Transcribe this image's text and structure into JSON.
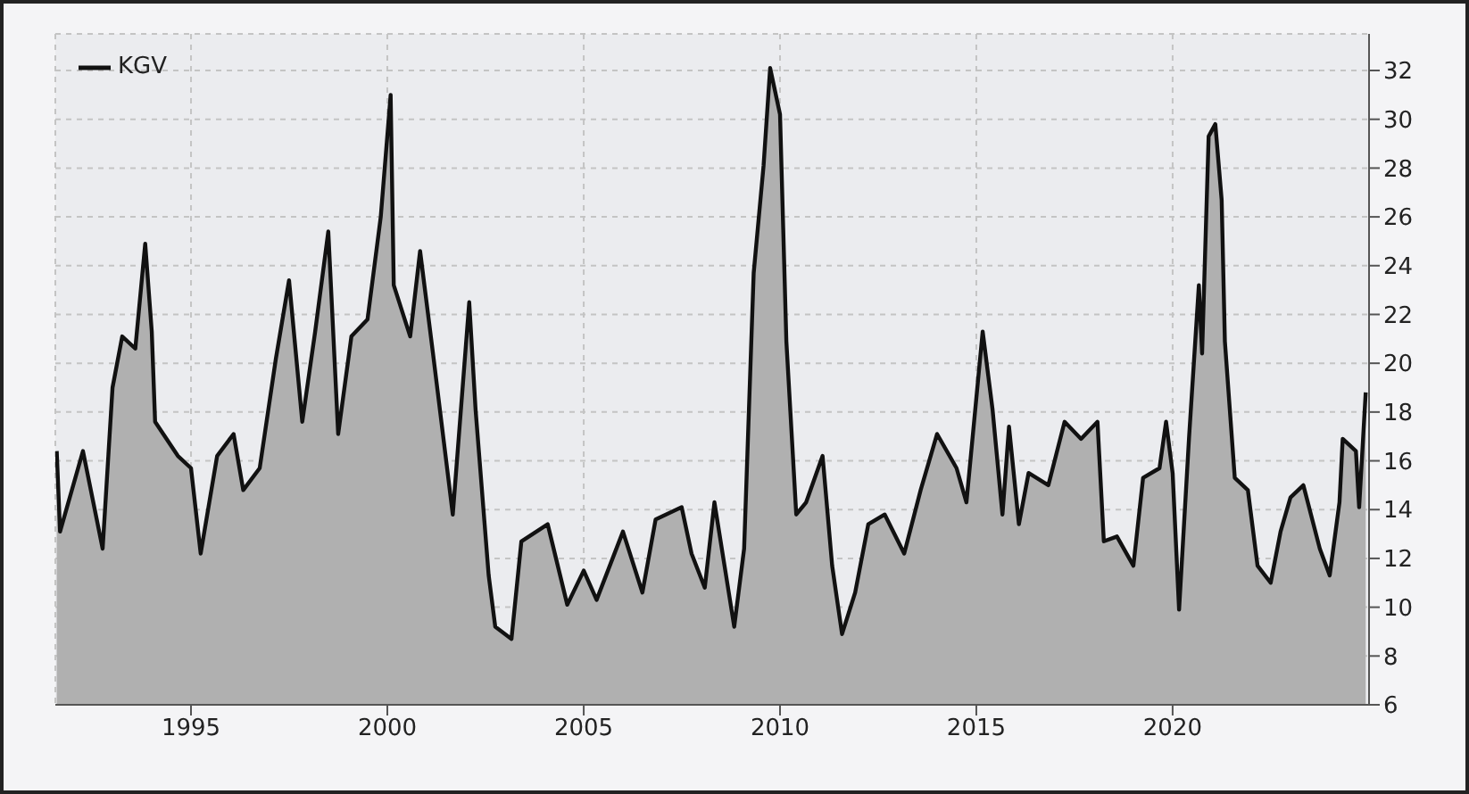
{
  "chart_data": {
    "type": "area",
    "x": [
      "1991-08",
      "1991-09",
      "1992-04",
      "1992-10",
      "1993-01",
      "1993-04",
      "1993-08",
      "1993-11",
      "1994-01",
      "1994-02",
      "1994-09",
      "1995-01",
      "1995-04",
      "1995-09",
      "1996-02",
      "1996-05",
      "1996-10",
      "1997-03",
      "1997-07",
      "1997-11",
      "1998-03",
      "1998-07",
      "1998-10",
      "1999-02",
      "1999-07",
      "1999-11",
      "2000-02",
      "2000-03",
      "2000-08",
      "2000-11",
      "2001-03",
      "2001-09",
      "2002-02",
      "2002-04",
      "2002-08",
      "2002-10",
      "2003-03",
      "2003-06",
      "2004-02",
      "2004-08",
      "2005-01",
      "2005-05",
      "2006-01",
      "2006-07",
      "2006-11",
      "2007-07",
      "2007-10",
      "2008-02",
      "2008-05",
      "2008-11",
      "2009-02",
      "2009-05",
      "2009-08",
      "2009-10",
      "2010-01",
      "2010-03",
      "2010-06",
      "2010-09",
      "2011-02",
      "2011-05",
      "2011-08",
      "2011-12",
      "2012-04",
      "2012-09",
      "2013-03",
      "2013-08",
      "2014-01",
      "2014-07",
      "2014-10",
      "2015-03",
      "2015-06",
      "2015-09",
      "2015-11",
      "2016-02",
      "2016-05",
      "2016-11",
      "2017-04",
      "2017-09",
      "2018-02",
      "2018-04",
      "2018-08",
      "2019-01",
      "2019-04",
      "2019-09",
      "2019-11",
      "2020-01",
      "2020-03",
      "2020-06",
      "2020-09",
      "2020-10",
      "2020-12",
      "2021-02",
      "2021-04",
      "2021-05",
      "2021-08",
      "2021-12",
      "2022-03",
      "2022-07",
      "2022-10",
      "2023-01",
      "2023-05",
      "2023-10",
      "2024-01",
      "2024-04",
      "2024-05",
      "2024-09",
      "2024-10",
      "2024-12"
    ],
    "series": [
      {
        "name": "KGV",
        "color": "#111111",
        "values": [
          16.4,
          13.1,
          16.4,
          12.4,
          19.0,
          21.1,
          20.6,
          24.9,
          21.3,
          17.6,
          16.2,
          15.7,
          12.2,
          16.2,
          17.1,
          14.8,
          15.7,
          20.2,
          23.4,
          17.6,
          21.3,
          25.4,
          17.1,
          21.1,
          21.8,
          26.0,
          31.0,
          23.2,
          21.1,
          24.6,
          20.4,
          13.8,
          22.5,
          18.1,
          11.3,
          9.2,
          8.7,
          12.7,
          13.4,
          10.1,
          11.5,
          10.3,
          13.1,
          10.6,
          13.6,
          14.1,
          12.2,
          10.8,
          14.3,
          9.2,
          12.4,
          23.7,
          28.1,
          32.1,
          30.2,
          20.9,
          13.8,
          14.3,
          16.2,
          11.7,
          8.9,
          10.6,
          13.4,
          13.8,
          12.2,
          14.8,
          17.1,
          15.7,
          14.3,
          21.3,
          18.1,
          13.8,
          17.4,
          13.4,
          15.5,
          15.0,
          17.6,
          16.9,
          17.6,
          12.7,
          12.9,
          11.7,
          15.3,
          15.7,
          17.6,
          15.5,
          9.9,
          16.9,
          23.2,
          20.4,
          29.3,
          29.8,
          26.7,
          20.9,
          15.3,
          14.8,
          11.7,
          11.0,
          13.1,
          14.5,
          15.0,
          12.4,
          11.3,
          14.3,
          16.9,
          16.4,
          14.1,
          18.8
        ]
      }
    ],
    "xlim": [
      "1991-07-19",
      "2025-01-01"
    ],
    "xticks": [
      "1995",
      "2000",
      "2005",
      "2010",
      "2015",
      "2020"
    ],
    "ylim": [
      6,
      33.5
    ],
    "yticks": [
      6,
      8,
      10,
      12,
      14,
      16,
      18,
      20,
      22,
      24,
      26,
      28,
      30,
      32
    ],
    "grid": true,
    "legend": "top left"
  }
}
